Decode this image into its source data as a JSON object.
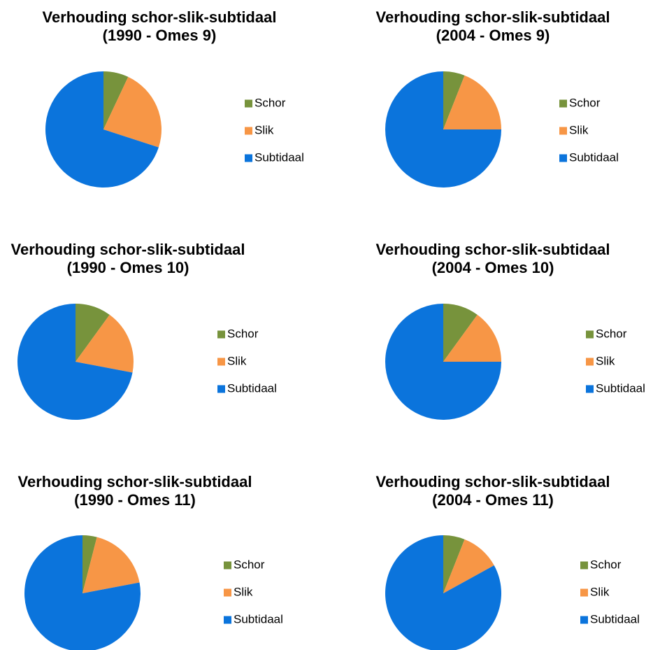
{
  "chart_data": [
    {
      "type": "pie",
      "title": "Verhouding schor-slik-subtidaal (1990 - Omes 9)",
      "categories": [
        "Schor",
        "Slik",
        "Subtidaal"
      ],
      "values": [
        7,
        23,
        70
      ],
      "colors": [
        "#77933c",
        "#f79646",
        "#0b74dc"
      ]
    },
    {
      "type": "pie",
      "title": "Verhouding schor-slik-subtidaal (2004 - Omes 9)",
      "categories": [
        "Schor",
        "Slik",
        "Subtidaal"
      ],
      "values": [
        6,
        19,
        75
      ],
      "colors": [
        "#77933c",
        "#f79646",
        "#0b74dc"
      ]
    },
    {
      "type": "pie",
      "title": "Verhouding schor-slik-subtidaal (1990 - Omes 10)",
      "categories": [
        "Schor",
        "Slik",
        "Subtidaal"
      ],
      "values": [
        10,
        18,
        72
      ],
      "colors": [
        "#77933c",
        "#f79646",
        "#0b74dc"
      ]
    },
    {
      "type": "pie",
      "title": "Verhouding schor-slik-subtidaal (2004 - Omes 10)",
      "categories": [
        "Schor",
        "Slik",
        "Subtidaal"
      ],
      "values": [
        10,
        15,
        75
      ],
      "colors": [
        "#77933c",
        "#f79646",
        "#0b74dc"
      ]
    },
    {
      "type": "pie",
      "title": "Verhouding schor-slik-subtidaal (1990 - Omes 11)",
      "categories": [
        "Schor",
        "Slik",
        "Subtidaal"
      ],
      "values": [
        4,
        18,
        78
      ],
      "colors": [
        "#77933c",
        "#f79646",
        "#0b74dc"
      ]
    },
    {
      "type": "pie",
      "title": "Verhouding schor-slik-subtidaal (2004 - Omes 11)",
      "categories": [
        "Schor",
        "Slik",
        "Subtidaal"
      ],
      "values": [
        6,
        11,
        83
      ],
      "colors": [
        "#77933c",
        "#f79646",
        "#0b74dc"
      ]
    }
  ]
}
